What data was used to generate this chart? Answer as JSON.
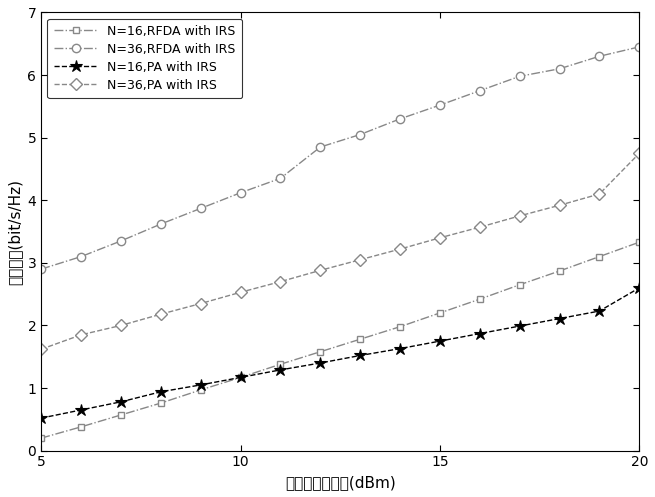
{
  "x": [
    5,
    6,
    7,
    8,
    9,
    10,
    11,
    12,
    13,
    14,
    15,
    16,
    17,
    18,
    19,
    20
  ],
  "N16_RFDA": [
    0.2,
    0.38,
    0.57,
    0.76,
    0.97,
    1.17,
    1.38,
    1.58,
    1.78,
    1.98,
    2.2,
    2.42,
    2.65,
    2.87,
    3.1,
    3.33
  ],
  "N36_RFDA": [
    2.9,
    3.1,
    3.35,
    3.62,
    3.87,
    4.12,
    4.35,
    4.85,
    5.05,
    5.3,
    5.52,
    5.75,
    5.98,
    6.1,
    6.3,
    6.45
  ],
  "N16_PA": [
    0.52,
    0.65,
    0.78,
    0.94,
    1.05,
    1.17,
    1.29,
    1.4,
    1.52,
    1.63,
    1.75,
    1.87,
    1.99,
    2.11,
    2.23,
    2.6
  ],
  "N36_PA": [
    1.62,
    1.85,
    2.0,
    2.18,
    2.35,
    2.53,
    2.7,
    2.88,
    3.05,
    3.22,
    3.4,
    3.57,
    3.75,
    3.92,
    4.1,
    4.75
  ],
  "line_color": "#888888",
  "black_color": "#000000",
  "xlabel": "发射机最大功率(dBm)",
  "ylabel": "保密容量(bit/s/Hz)",
  "xlim": [
    5,
    20
  ],
  "ylim": [
    0,
    7
  ],
  "xticks": [
    5,
    10,
    15,
    20
  ],
  "yticks": [
    0,
    1,
    2,
    3,
    4,
    5,
    6,
    7
  ],
  "legend": [
    "N=16,RFDA with IRS",
    "N=36,RFDA with IRS",
    "N=16,PA with IRS",
    "N=36,PA with IRS"
  ],
  "figsize": [
    6.55,
    4.97
  ],
  "dpi": 100
}
